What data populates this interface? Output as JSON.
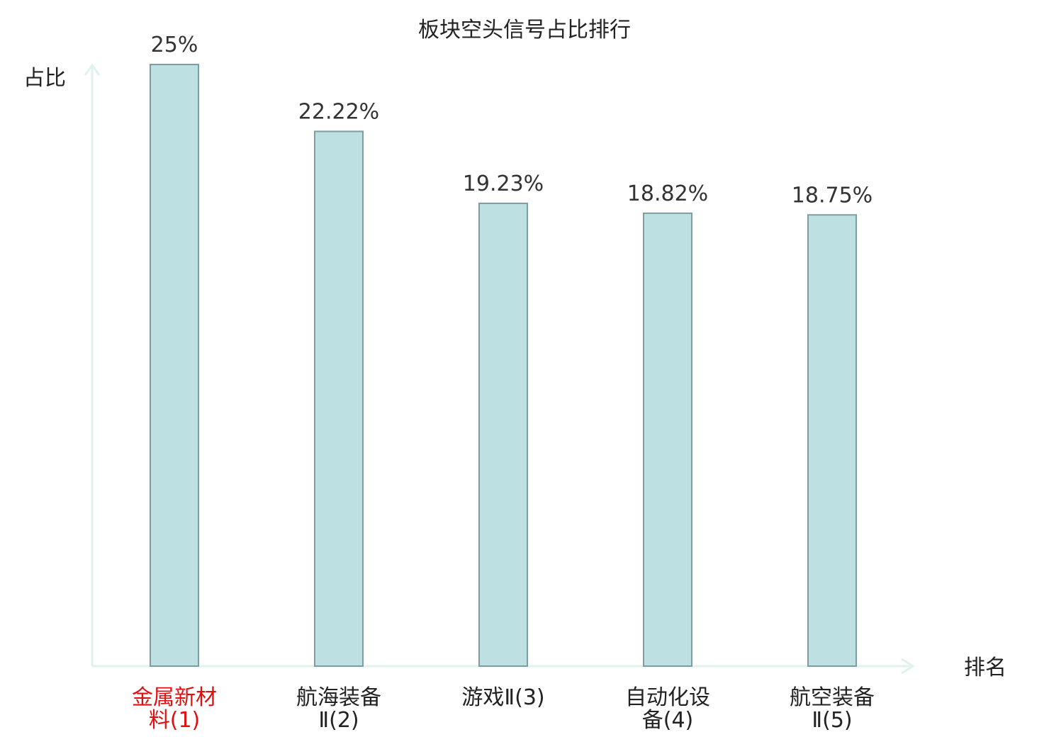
{
  "chart_data": {
    "type": "bar",
    "title": "板块空头信号占比排行",
    "ylabel": "占比",
    "xlabel": "排名",
    "categories": [
      [
        "金属新材",
        "料(1)"
      ],
      [
        "航海装备",
        "Ⅱ(2)"
      ],
      [
        "游戏Ⅱ(3)"
      ],
      [
        "自动化设",
        "备(4)"
      ],
      [
        "航空装备",
        "Ⅱ(5)"
      ]
    ],
    "values": [
      25,
      22.22,
      19.23,
      18.82,
      18.75
    ],
    "value_labels": [
      "25%",
      "22.22%",
      "19.23%",
      "18.82%",
      "18.75%"
    ],
    "ylim": [
      0,
      25
    ],
    "highlight_index": 0,
    "grid": false,
    "colors": {
      "bar_fill": "#bde1e2",
      "bar_stroke": "#7f9c9e",
      "axis": "#dff2ee",
      "highlight_text": "#e01010"
    }
  }
}
